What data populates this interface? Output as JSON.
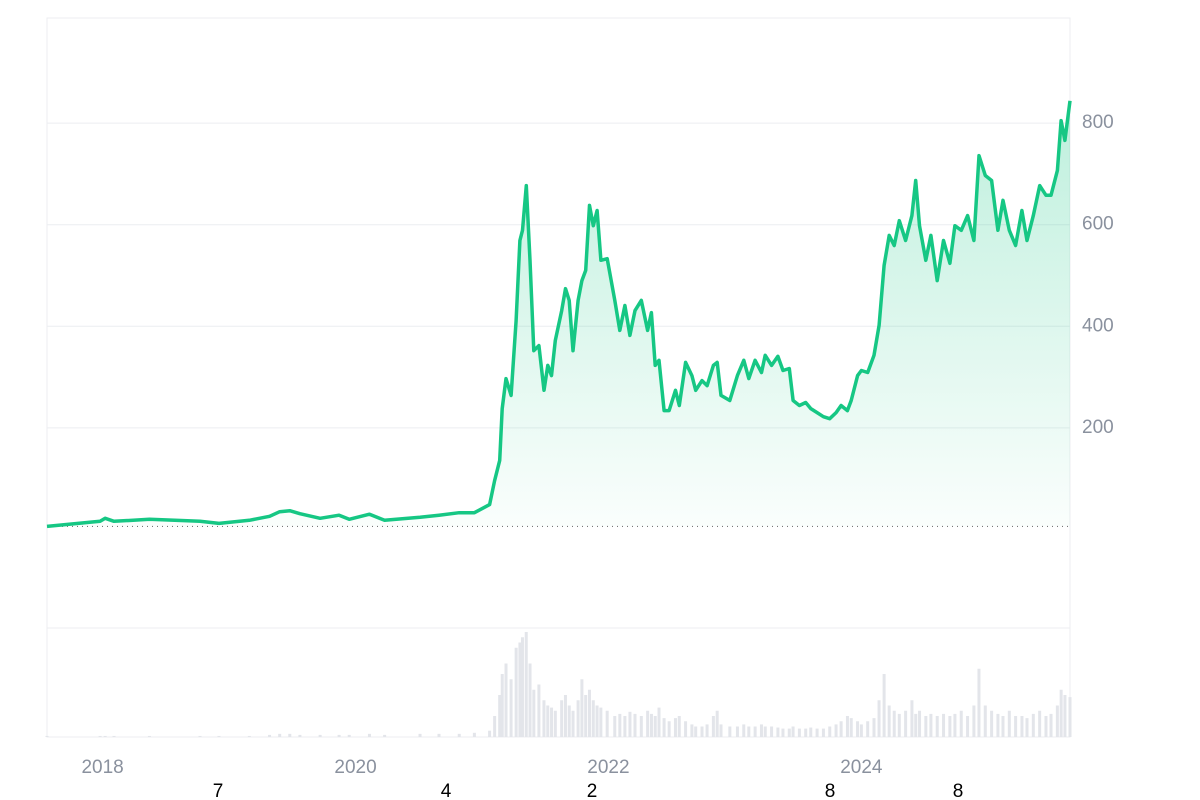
{
  "chart_data": {
    "type": "line",
    "color": "#16c784",
    "volume_color": "#e3e5ea",
    "x": [
      2017.56,
      2017.98,
      2018.02,
      2018.09,
      2018.37,
      2018.77,
      2018.92,
      2019.16,
      2019.32,
      2019.4,
      2019.48,
      2019.56,
      2019.72,
      2019.87,
      2019.95,
      2020.11,
      2020.23,
      2020.51,
      2020.66,
      2020.82,
      2020.94,
      2021.06,
      2021.1,
      2021.14,
      2021.16,
      2021.19,
      2021.23,
      2021.27,
      2021.3,
      2021.32,
      2021.35,
      2021.38,
      2021.41,
      2021.45,
      2021.49,
      2021.52,
      2021.55,
      2021.58,
      2021.63,
      2021.66,
      2021.69,
      2021.72,
      2021.76,
      2021.79,
      2021.82,
      2021.85,
      2021.88,
      2021.91,
      2021.94,
      2021.99,
      2022.05,
      2022.09,
      2022.13,
      2022.17,
      2022.21,
      2022.26,
      2022.31,
      2022.34,
      2022.37,
      2022.4,
      2022.44,
      2022.48,
      2022.53,
      2022.56,
      2022.61,
      2022.66,
      2022.69,
      2022.74,
      2022.78,
      2022.83,
      2022.86,
      2022.89,
      2022.96,
      2023.02,
      2023.07,
      2023.11,
      2023.16,
      2023.21,
      2023.24,
      2023.29,
      2023.34,
      2023.38,
      2023.43,
      2023.46,
      2023.51,
      2023.56,
      2023.6,
      2023.65,
      2023.7,
      2023.75,
      2023.8,
      2023.84,
      2023.89,
      2023.92,
      2023.97,
      2024.0,
      2024.05,
      2024.1,
      2024.14,
      2024.18,
      2024.22,
      2024.26,
      2024.3,
      2024.35,
      2024.4,
      2024.43,
      2024.46,
      2024.51,
      2024.55,
      2024.6,
      2024.65,
      2024.7,
      2024.74,
      2024.79,
      2024.84,
      2024.89,
      2024.93,
      2024.98,
      2025.03,
      2025.08,
      2025.12,
      2025.17,
      2025.22,
      2025.27,
      2025.31,
      2025.36,
      2025.41,
      2025.46,
      2025.5,
      2025.55,
      2025.58,
      2025.61,
      2025.65
    ],
    "values": [
      6,
      16,
      22,
      16,
      20,
      16,
      12,
      18,
      26,
      35,
      37,
      31,
      22,
      28,
      20,
      30,
      18,
      24,
      28,
      33,
      33,
      49,
      96,
      136,
      238,
      297,
      264,
      411,
      569,
      589,
      677,
      530,
      352,
      362,
      274,
      323,
      303,
      372,
      431,
      474,
      451,
      352,
      451,
      490,
      510,
      638,
      598,
      628,
      530,
      533,
      451,
      392,
      441,
      382,
      431,
      451,
      392,
      427,
      323,
      333,
      234,
      234,
      274,
      244,
      329,
      303,
      274,
      293,
      283,
      323,
      329,
      264,
      254,
      303,
      333,
      297,
      333,
      309,
      343,
      323,
      341,
      313,
      317,
      254,
      244,
      250,
      238,
      230,
      222,
      218,
      230,
      244,
      234,
      254,
      303,
      313,
      309,
      343,
      402,
      520,
      579,
      559,
      608,
      569,
      618,
      687,
      598,
      530,
      579,
      490,
      569,
      524,
      598,
      589,
      618,
      569,
      736,
      697,
      687,
      589,
      648,
      589,
      559,
      628,
      569,
      618,
      677,
      658,
      658,
      707,
      805,
      766,
      844
    ],
    "volume": [
      1,
      1,
      1,
      1,
      1,
      1,
      1,
      1,
      2,
      3,
      3,
      2,
      2,
      2,
      2,
      3,
      2,
      3,
      3,
      3,
      4,
      6,
      20,
      40,
      60,
      70,
      55,
      85,
      90,
      95,
      100,
      70,
      45,
      50,
      35,
      30,
      28,
      25,
      35,
      40,
      30,
      25,
      35,
      55,
      40,
      45,
      35,
      30,
      28,
      25,
      20,
      22,
      20,
      24,
      22,
      20,
      25,
      22,
      20,
      28,
      18,
      15,
      18,
      20,
      15,
      12,
      10,
      10,
      12,
      20,
      25,
      12,
      10,
      10,
      12,
      10,
      10,
      12,
      10,
      10,
      9,
      8,
      8,
      10,
      8,
      8,
      9,
      8,
      8,
      10,
      12,
      15,
      20,
      18,
      15,
      12,
      15,
      18,
      35,
      60,
      30,
      25,
      22,
      25,
      35,
      22,
      25,
      20,
      22,
      20,
      22,
      20,
      22,
      25,
      20,
      30,
      65,
      30,
      25,
      22,
      20,
      25,
      20,
      20,
      18,
      22,
      25,
      20,
      22,
      30,
      45,
      40,
      38
    ],
    "vlim": [
      0,
      100
    ],
    "xlim": [
      2017.56,
      2025.65
    ],
    "xticks": [
      2018,
      2020,
      2022,
      2024
    ],
    "ylim": [
      -194,
      1007
    ],
    "yticks": [
      200,
      400,
      600,
      800
    ],
    "grid": true
  },
  "footer_labels": [
    "7",
    "4",
    "2",
    "8",
    "8"
  ]
}
